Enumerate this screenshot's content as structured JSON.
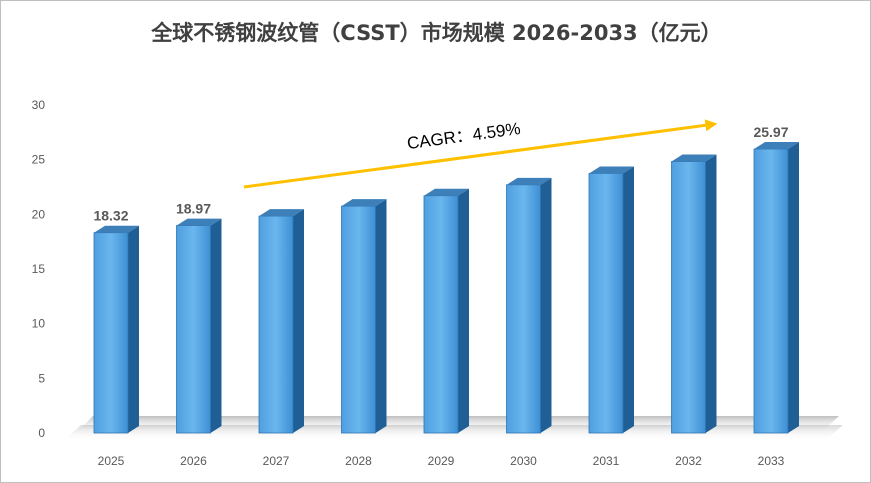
{
  "chart_data": {
    "type": "bar",
    "title": "全球不锈钢波纹管（CSST）市场规模 2026-2033（亿元）",
    "categories": [
      "2025",
      "2026",
      "2027",
      "2028",
      "2029",
      "2030",
      "2031",
      "2032",
      "2033"
    ],
    "values": [
      18.32,
      18.97,
      19.84,
      20.75,
      21.7,
      22.7,
      23.74,
      24.83,
      25.97
    ],
    "data_labels": [
      {
        "category": "2025",
        "text": "18.32"
      },
      {
        "category": "2026",
        "text": "18.97"
      },
      {
        "category": "2033",
        "text": "25.97"
      }
    ],
    "y_ticks": [
      "0",
      "5",
      "10",
      "15",
      "20",
      "25",
      "30"
    ],
    "ylim": [
      0,
      30
    ],
    "annotation": {
      "text": "CAGR：4.59%",
      "from_category": "2027",
      "to_category": "2033"
    },
    "grid": false,
    "legend": "none",
    "colors": {
      "bar_front": "#5aa9e6",
      "bar_side": "#1f5f96",
      "bar_top": "#3d7fb8",
      "arrow": "#ffc000"
    }
  }
}
